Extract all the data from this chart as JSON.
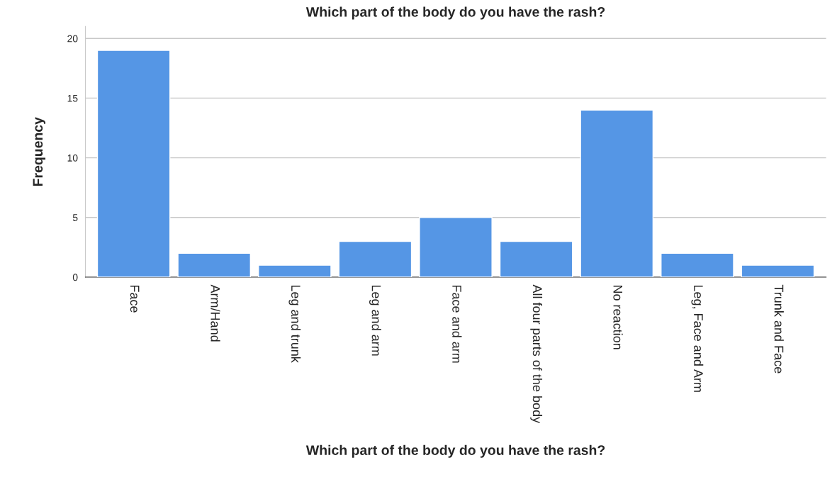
{
  "chart_data": {
    "type": "bar",
    "title": "Which part of the body do you have the rash?",
    "xlabel": "Which part of the body do you have the rash?",
    "ylabel": "Frequency",
    "categories": [
      "Face",
      "Arm/Hand",
      "Leg and trunk",
      "Leg and arm",
      "Face and arm",
      "All four parts of the body",
      "No reaction",
      "Leg, Face and Arm",
      "Trunk and Face"
    ],
    "values": [
      19,
      2,
      1,
      3,
      5,
      3,
      14,
      2,
      1
    ],
    "color": "#5596e5",
    "ylim": [
      0,
      21
    ],
    "yticks": [
      0,
      5,
      10,
      15,
      20
    ],
    "grid": "y"
  }
}
